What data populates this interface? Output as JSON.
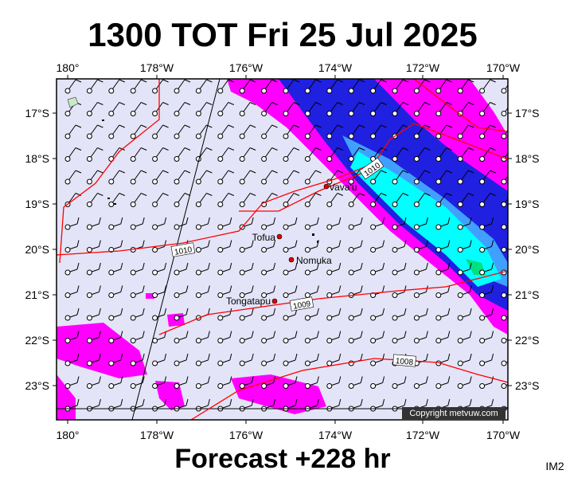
{
  "header": {
    "title": "1300 TOT Fri 25 Jul 2025"
  },
  "map": {
    "lon_labels": [
      "180°",
      "178°W",
      "176°W",
      "174°W",
      "172°W",
      "170°W"
    ],
    "lat_labels": [
      "17°S",
      "18°S",
      "19°S",
      "20°S",
      "21°S",
      "22°S",
      "23°S"
    ],
    "places": [
      "Vava'u",
      "Tofua",
      "Nomuka",
      "Tongatapu"
    ],
    "isobar_labels": [
      "1010",
      "1010",
      "1009",
      "1008"
    ],
    "copyright": "Copyright metvuw.com"
  },
  "footer": {
    "forecast": "Forecast +228 hr",
    "code": "IM2"
  }
}
